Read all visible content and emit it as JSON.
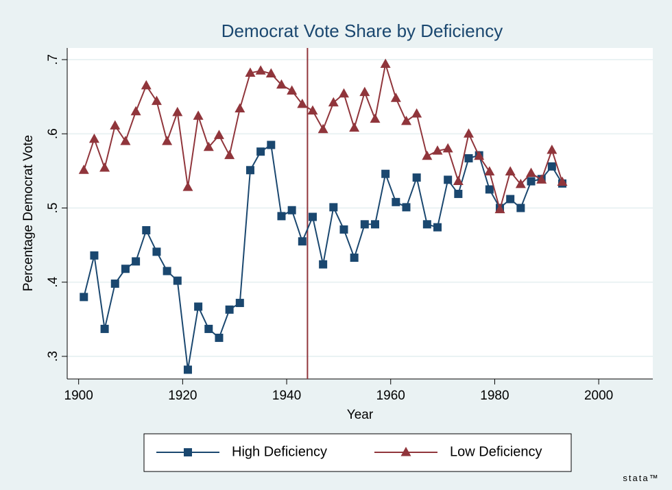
{
  "chart_data": {
    "type": "line",
    "title": "Democrat Vote Share by Deficiency",
    "x_label": "Year",
    "y_label": "Percentage Democrat Vote",
    "x": [
      1901,
      1903,
      1905,
      1907,
      1909,
      1911,
      1913,
      1915,
      1917,
      1919,
      1921,
      1923,
      1925,
      1927,
      1929,
      1931,
      1933,
      1935,
      1937,
      1939,
      1941,
      1943,
      1945,
      1947,
      1949,
      1951,
      1953,
      1955,
      1957,
      1959,
      1961,
      1963,
      1965,
      1967,
      1969,
      1971,
      1973,
      1975,
      1977,
      1979,
      1981,
      1983,
      1985,
      1987,
      1989,
      1991,
      1993
    ],
    "series": [
      {
        "name": "High Deficiency",
        "color": "#1a476f",
        "marker": "square",
        "values": [
          0.38,
          0.436,
          0.337,
          0.398,
          0.418,
          0.428,
          0.47,
          0.441,
          0.415,
          0.402,
          0.282,
          0.367,
          0.337,
          0.325,
          0.363,
          0.372,
          0.551,
          0.576,
          0.585,
          0.489,
          0.497,
          0.455,
          0.488,
          0.424,
          0.501,
          0.471,
          0.433,
          0.478,
          0.478,
          0.546,
          0.508,
          0.501,
          0.541,
          0.478,
          0.474,
          0.538,
          0.519,
          0.567,
          0.571,
          0.525,
          0.5,
          0.512,
          0.5,
          0.536,
          0.539,
          0.556,
          0.533
        ]
      },
      {
        "name": "Low Deficiency",
        "color": "#90353b",
        "marker": "triangle",
        "values": [
          0.551,
          0.593,
          0.554,
          0.611,
          0.59,
          0.63,
          0.665,
          0.644,
          0.59,
          0.629,
          0.528,
          0.624,
          0.582,
          0.598,
          0.571,
          0.634,
          0.682,
          0.685,
          0.681,
          0.666,
          0.658,
          0.64,
          0.631,
          0.606,
          0.642,
          0.654,
          0.608,
          0.656,
          0.62,
          0.694,
          0.648,
          0.617,
          0.627,
          0.57,
          0.577,
          0.58,
          0.536,
          0.6,
          0.57,
          0.549,
          0.498,
          0.549,
          0.532,
          0.547,
          0.538,
          0.578,
          0.535
        ]
      }
    ],
    "xlim": [
      1897.8,
      2010.4
    ],
    "xticks": [
      1900,
      1920,
      1940,
      1960,
      1980,
      2000
    ],
    "ylim": [
      0.2695,
      0.7157
    ],
    "yticks": [
      {
        "value": 0.3,
        "label": ".3"
      },
      {
        "value": 0.4,
        "label": ".4"
      },
      {
        "value": 0.5,
        "label": ".5"
      },
      {
        "value": 0.6,
        "label": ".6"
      },
      {
        "value": 0.7,
        "label": ".7"
      }
    ],
    "grid": true,
    "reference_line_x": 1944,
    "reference_line_color": "#90353b",
    "legend_position": "bottom",
    "watermark": "stata™"
  }
}
